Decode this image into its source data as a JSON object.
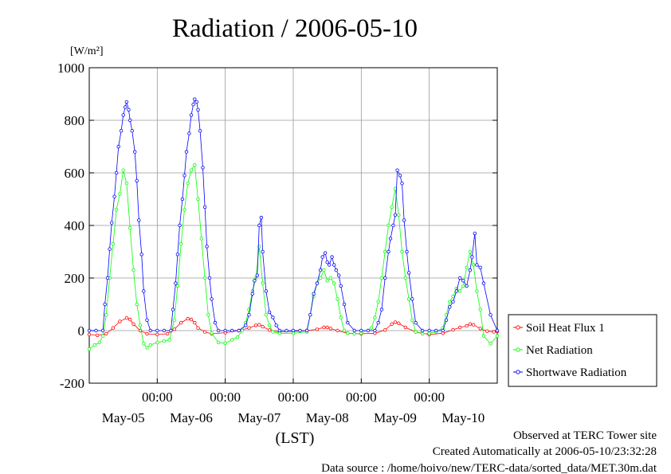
{
  "chart_data": {
    "type": "line",
    "title": "Radiation / 2006-05-10",
    "ylabel_unit": "[W/m²]",
    "xlabel": "(LST)",
    "ylim": [
      -200,
      1000
    ],
    "yticks": [
      -200,
      0,
      200,
      400,
      600,
      800,
      1000
    ],
    "xlim_days": [
      5.0,
      11.0
    ],
    "xticks_time": [
      {
        "day": 6,
        "label": "00:00"
      },
      {
        "day": 7,
        "label": "00:00"
      },
      {
        "day": 8,
        "label": "00:00"
      },
      {
        "day": 9,
        "label": "00:00"
      },
      {
        "day": 10,
        "label": "00:00"
      }
    ],
    "xticks_date": [
      {
        "day": 5.5,
        "label": "May-05"
      },
      {
        "day": 6.5,
        "label": "May-06"
      },
      {
        "day": 7.5,
        "label": "May-07"
      },
      {
        "day": 8.5,
        "label": "May-08"
      },
      {
        "day": 9.5,
        "label": "May-09"
      },
      {
        "day": 10.5,
        "label": "May-10"
      }
    ],
    "grid": true,
    "legend_position": "bottom-right",
    "series": [
      {
        "name": "Soil Heat Flux 1",
        "color": "#ff0000",
        "x": [
          5.0,
          5.12,
          5.25,
          5.35,
          5.45,
          5.55,
          5.6,
          5.65,
          5.75,
          5.85,
          6.0,
          6.15,
          6.25,
          6.35,
          6.45,
          6.5,
          6.55,
          6.6,
          6.7,
          6.8,
          7.0,
          7.2,
          7.35,
          7.45,
          7.5,
          7.55,
          7.65,
          7.8,
          8.0,
          8.2,
          8.35,
          8.45,
          8.5,
          8.55,
          8.65,
          8.8,
          9.0,
          9.2,
          9.35,
          9.45,
          9.5,
          9.55,
          9.65,
          9.8,
          10.0,
          10.2,
          10.35,
          10.45,
          10.55,
          10.6,
          10.65,
          10.75,
          10.85,
          10.95,
          11.0
        ],
        "y": [
          -15,
          -18,
          -12,
          10,
          35,
          48,
          42,
          25,
          0,
          -12,
          -15,
          -12,
          5,
          30,
          45,
          42,
          30,
          10,
          -5,
          -12,
          -8,
          0,
          10,
          20,
          22,
          15,
          2,
          -5,
          -3,
          0,
          5,
          12,
          12,
          8,
          0,
          -10,
          -12,
          -10,
          2,
          25,
          32,
          28,
          12,
          -5,
          -15,
          -10,
          3,
          12,
          18,
          25,
          22,
          8,
          -2,
          -5,
          -3
        ]
      },
      {
        "name": "Net Radiation",
        "color": "#00ff00",
        "x": [
          5.0,
          5.08,
          5.15,
          5.2,
          5.25,
          5.3,
          5.35,
          5.4,
          5.45,
          5.5,
          5.55,
          5.6,
          5.65,
          5.7,
          5.75,
          5.8,
          5.85,
          5.9,
          6.0,
          6.1,
          6.18,
          6.25,
          6.3,
          6.35,
          6.4,
          6.45,
          6.5,
          6.55,
          6.6,
          6.65,
          6.7,
          6.75,
          6.8,
          6.9,
          7.0,
          7.1,
          7.18,
          7.25,
          7.3,
          7.35,
          7.4,
          7.45,
          7.5,
          7.55,
          7.6,
          7.65,
          7.7,
          7.8,
          8.0,
          8.2,
          8.25,
          8.3,
          8.35,
          8.4,
          8.45,
          8.5,
          8.55,
          8.6,
          8.65,
          8.7,
          8.75,
          8.8,
          8.9,
          9.0,
          9.15,
          9.2,
          9.25,
          9.3,
          9.35,
          9.4,
          9.45,
          9.5,
          9.55,
          9.6,
          9.65,
          9.7,
          9.75,
          9.8,
          9.9,
          10.0,
          10.1,
          10.2,
          10.25,
          10.3,
          10.35,
          10.4,
          10.45,
          10.5,
          10.55,
          10.6,
          10.65,
          10.7,
          10.75,
          10.8,
          10.9,
          11.0
        ],
        "y": [
          -70,
          -55,
          -45,
          -20,
          60,
          200,
          330,
          460,
          520,
          610,
          560,
          390,
          230,
          100,
          20,
          -50,
          -65,
          -55,
          -45,
          -40,
          -35,
          40,
          170,
          330,
          460,
          560,
          610,
          630,
          500,
          350,
          200,
          60,
          -10,
          -45,
          -48,
          -35,
          -25,
          0,
          30,
          80,
          150,
          200,
          320,
          180,
          60,
          20,
          -5,
          -10,
          -10,
          -5,
          60,
          130,
          180,
          200,
          230,
          190,
          200,
          180,
          120,
          50,
          0,
          -10,
          -12,
          -10,
          10,
          50,
          110,
          200,
          300,
          400,
          470,
          540,
          440,
          300,
          200,
          120,
          40,
          -5,
          -12,
          -10,
          -5,
          10,
          60,
          110,
          130,
          160,
          150,
          170,
          240,
          300,
          250,
          150,
          80,
          -20,
          -50,
          -20
        ]
      },
      {
        "name": "Shortwave Radiation",
        "color": "#0000ff",
        "x": [
          5.0,
          5.1,
          5.2,
          5.23,
          5.27,
          5.3,
          5.33,
          5.37,
          5.4,
          5.43,
          5.47,
          5.5,
          5.53,
          5.55,
          5.58,
          5.6,
          5.63,
          5.67,
          5.7,
          5.73,
          5.77,
          5.8,
          5.85,
          5.9,
          6.0,
          6.1,
          6.2,
          6.23,
          6.27,
          6.3,
          6.33,
          6.37,
          6.4,
          6.43,
          6.47,
          6.5,
          6.53,
          6.55,
          6.58,
          6.6,
          6.63,
          6.67,
          6.7,
          6.73,
          6.77,
          6.8,
          6.85,
          6.9,
          7.0,
          7.1,
          7.2,
          7.3,
          7.35,
          7.4,
          7.43,
          7.47,
          7.5,
          7.53,
          7.55,
          7.6,
          7.65,
          7.7,
          7.75,
          7.8,
          7.9,
          8.0,
          8.1,
          8.2,
          8.25,
          8.3,
          8.35,
          8.4,
          8.43,
          8.47,
          8.5,
          8.53,
          8.57,
          8.6,
          8.63,
          8.67,
          8.7,
          8.75,
          8.8,
          8.9,
          9.0,
          9.1,
          9.2,
          9.25,
          9.3,
          9.35,
          9.4,
          9.43,
          9.47,
          9.5,
          9.53,
          9.57,
          9.6,
          9.63,
          9.67,
          9.7,
          9.75,
          9.8,
          9.9,
          10.0,
          10.1,
          10.2,
          10.25,
          10.3,
          10.35,
          10.4,
          10.45,
          10.5,
          10.55,
          10.6,
          10.63,
          10.67,
          10.7,
          10.75,
          10.8,
          10.9,
          11.0
        ],
        "y": [
          0,
          0,
          0,
          100,
          200,
          310,
          410,
          510,
          600,
          700,
          760,
          820,
          850,
          870,
          840,
          800,
          760,
          680,
          570,
          420,
          290,
          150,
          40,
          0,
          0,
          0,
          0,
          80,
          180,
          290,
          400,
          500,
          590,
          680,
          750,
          820,
          860,
          880,
          870,
          840,
          760,
          620,
          470,
          320,
          200,
          120,
          30,
          0,
          0,
          0,
          0,
          20,
          60,
          140,
          190,
          210,
          400,
          430,
          300,
          150,
          70,
          50,
          20,
          0,
          0,
          0,
          0,
          0,
          60,
          140,
          180,
          230,
          280,
          295,
          260,
          250,
          280,
          250,
          230,
          210,
          170,
          100,
          30,
          0,
          0,
          0,
          0,
          30,
          80,
          200,
          300,
          350,
          400,
          440,
          610,
          590,
          560,
          420,
          300,
          220,
          120,
          30,
          0,
          0,
          0,
          0,
          40,
          90,
          110,
          150,
          200,
          190,
          170,
          230,
          280,
          370,
          250,
          240,
          180,
          60,
          0
        ]
      }
    ]
  },
  "footer": {
    "line1": "Observed at TERC Tower site",
    "line2": "Created Automatically at 2006-05-10/23:32:28",
    "line3": "Data source : /home/hoivo/new/TERC-data/sorted_data/MET.30m.dat"
  }
}
